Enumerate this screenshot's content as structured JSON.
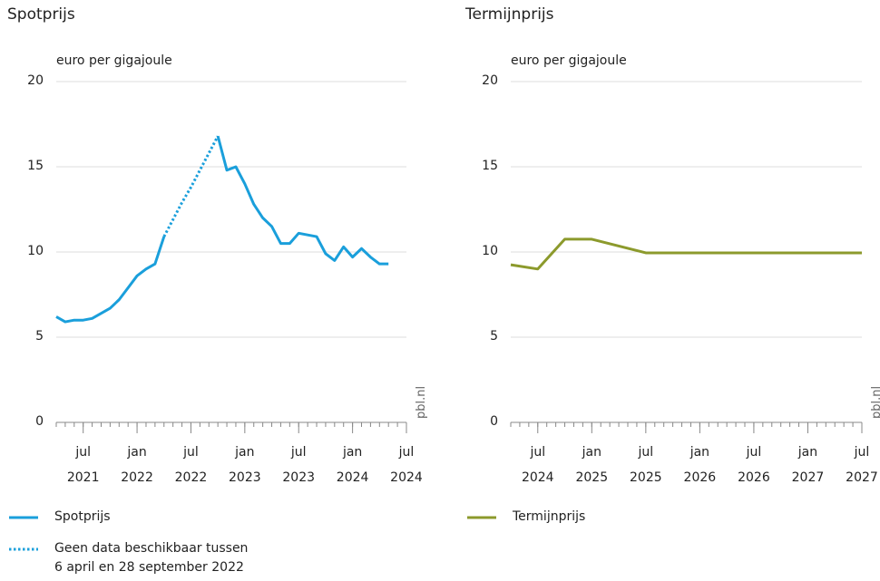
{
  "chart_data": [
    {
      "type": "line",
      "title": "Spotprijs",
      "y_label": "euro per gigajoule",
      "source": "pbl.nl",
      "x": [
        "2021-04",
        "2021-05",
        "2021-06",
        "2021-07",
        "2021-08",
        "2021-09",
        "2021-10",
        "2021-11",
        "2021-12",
        "2022-01",
        "2022-02",
        "2022-03",
        "2022-04",
        "2022-05",
        "2022-06",
        "2022-07",
        "2022-08",
        "2022-09",
        "2022-10",
        "2022-11",
        "2022-12",
        "2023-01",
        "2023-02",
        "2023-03",
        "2023-04",
        "2023-05",
        "2023-06",
        "2023-07",
        "2023-08",
        "2023-09",
        "2023-10",
        "2023-11",
        "2023-12",
        "2024-01",
        "2024-02",
        "2024-03",
        "2024-04",
        "2024-05"
      ],
      "series": [
        {
          "name": "Spotprijs",
          "color": "#1a9fdb",
          "style": "solid",
          "values": [
            6.2,
            5.9,
            6.0,
            6.0,
            6.1,
            6.4,
            6.7,
            7.2,
            7.9,
            8.6,
            9.0,
            9.3,
            10.9,
            null,
            null,
            null,
            null,
            null,
            16.8,
            14.8,
            15.0,
            14.0,
            12.8,
            12.0,
            11.5,
            10.5,
            10.5,
            11.1,
            11.0,
            10.9,
            9.9,
            9.5,
            10.3,
            9.7,
            10.2,
            9.7,
            9.3,
            9.3
          ]
        },
        {
          "name": "Geen data beschikbaar tussen\n6 april en 28 september 2022",
          "color": "#1a9fdb",
          "style": "dotted",
          "values": [
            null,
            null,
            null,
            null,
            null,
            null,
            null,
            null,
            null,
            null,
            null,
            null,
            10.9,
            11.9,
            12.9,
            13.8,
            14.8,
            15.8,
            16.8,
            null,
            null,
            null,
            null,
            null,
            null,
            null,
            null,
            null,
            null,
            null,
            null,
            null,
            null,
            null,
            null,
            null,
            null,
            null
          ]
        }
      ],
      "xlim": [
        "2021-04",
        "2024-07"
      ],
      "xticks": [
        {
          "value": "2021-07",
          "label": "jul\n2021"
        },
        {
          "value": "2022-01",
          "label": "jan\n2022"
        },
        {
          "value": "2022-07",
          "label": "jul\n2022"
        },
        {
          "value": "2023-01",
          "label": "jan\n2023"
        },
        {
          "value": "2023-07",
          "label": "jul\n2023"
        },
        {
          "value": "2024-01",
          "label": "jan\n2024"
        },
        {
          "value": "2024-07",
          "label": "jul\n2024"
        }
      ],
      "ylim": [
        0,
        20
      ],
      "yticks": [
        0,
        5,
        10,
        15,
        20
      ],
      "grid": true
    },
    {
      "type": "line",
      "title": "Termijnprijs",
      "y_label": "euro per gigajoule",
      "source": "pbl.nl",
      "x": [
        "2024-04",
        "2024-07",
        "2024-10",
        "2025-01",
        "2025-07",
        "2027-07"
      ],
      "series": [
        {
          "name": "Termijnprijs",
          "color": "#8c9a2c",
          "style": "solid",
          "values": [
            9.25,
            9.0,
            10.75,
            10.75,
            9.95,
            9.95
          ]
        }
      ],
      "xlim": [
        "2024-04",
        "2027-07"
      ],
      "xticks": [
        {
          "value": "2024-07",
          "label": "jul\n2024"
        },
        {
          "value": "2025-01",
          "label": "jan\n2025"
        },
        {
          "value": "2025-07",
          "label": "jul\n2025"
        },
        {
          "value": "2026-01",
          "label": "jan\n2026"
        },
        {
          "value": "2026-07",
          "label": "jul\n2026"
        },
        {
          "value": "2027-01",
          "label": "jan\n2027"
        },
        {
          "value": "2027-07",
          "label": "jul\n2027"
        }
      ],
      "ylim": [
        0,
        20
      ],
      "yticks": [
        0,
        5,
        10,
        15,
        20
      ],
      "grid": true
    }
  ]
}
